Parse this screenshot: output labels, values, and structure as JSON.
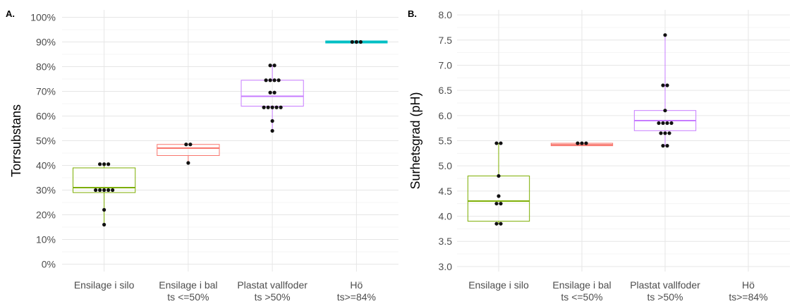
{
  "chart_data": [
    {
      "type": "box",
      "panel_label": "A.",
      "ylabel": "Torrsubstans",
      "y_tick_format": "percent",
      "ylim": [
        -3,
        103
      ],
      "y_ticks": [
        0,
        10,
        20,
        30,
        40,
        50,
        60,
        70,
        80,
        90,
        100
      ],
      "y_tick_labels": [
        "0%",
        "10%",
        "20%",
        "30%",
        "40%",
        "50%",
        "60%",
        "70%",
        "80%",
        "90%",
        "100%"
      ],
      "categories": [
        {
          "line1": "Ensilage i silo",
          "line2": ""
        },
        {
          "line1": "Ensilage i bal",
          "line2": "ts <=50%"
        },
        {
          "line1": "Plastat vallfoder",
          "line2": "ts >50%"
        },
        {
          "line1": "Hö",
          "line2": "ts>=84%"
        }
      ],
      "colors": [
        "#7cae00",
        "#f8766d",
        "#c77cff",
        "#00bfc4"
      ],
      "boxes": [
        {
          "min": 16,
          "q1": 29,
          "median": 31,
          "q3": 39,
          "max": 40.5,
          "points": [
            16,
            22,
            30,
            30,
            30,
            30,
            30,
            40.5,
            40.5,
            40.5
          ]
        },
        {
          "min": 41,
          "q1": 44,
          "median": 47,
          "q3": 48.5,
          "max": 48.5,
          "points": [
            41,
            48.5,
            48.5
          ]
        },
        {
          "min": 54,
          "q1": 64,
          "median": 68,
          "q3": 74.5,
          "max": 80.5,
          "points": [
            54,
            58,
            63.5,
            63.5,
            63.5,
            63.5,
            63.5,
            69.5,
            69.5,
            74.5,
            74.5,
            74.5,
            74.5,
            80.5,
            80.5
          ]
        },
        {
          "min": 90,
          "q1": 90,
          "median": 90,
          "q3": 90,
          "max": 90,
          "points": [
            90,
            90,
            90
          ]
        }
      ]
    },
    {
      "type": "box",
      "panel_label": "B.",
      "ylabel": "Surhetsgrad (pH)",
      "y_tick_format": "decimal1",
      "ylim": [
        2.9,
        8.1
      ],
      "y_ticks": [
        3.0,
        3.5,
        4.0,
        4.5,
        5.0,
        5.5,
        6.0,
        6.5,
        7.0,
        7.5,
        8.0
      ],
      "y_tick_labels": [
        "3.0",
        "3.5",
        "4.0",
        "4.5",
        "5.0",
        "5.5",
        "6.0",
        "6.5",
        "7.0",
        "7.5",
        "8.0"
      ],
      "categories": [
        {
          "line1": "Ensilage i silo",
          "line2": ""
        },
        {
          "line1": "Ensilage i bal",
          "line2": "ts <=50%"
        },
        {
          "line1": "Plastat vallfoder",
          "line2": "ts >50%"
        },
        {
          "line1": "Hö",
          "line2": "ts>=84%"
        }
      ],
      "colors": [
        "#7cae00",
        "#f8766d",
        "#c77cff",
        "#00bfc4"
      ],
      "boxes": [
        {
          "min": 3.85,
          "q1": 3.9,
          "median": 4.3,
          "q3": 4.8,
          "max": 5.45,
          "points": [
            3.85,
            3.85,
            4.25,
            4.25,
            4.4,
            4.8,
            5.45,
            5.45
          ]
        },
        {
          "min": 5.4,
          "q1": 5.4,
          "median": 5.42,
          "q3": 5.45,
          "max": 5.45,
          "points": [
            5.45,
            5.45,
            5.45
          ]
        },
        {
          "min": 5.4,
          "q1": 5.7,
          "median": 5.9,
          "q3": 6.1,
          "max": 7.6,
          "points": [
            5.4,
            5.4,
            5.65,
            5.65,
            5.65,
            5.85,
            5.85,
            5.85,
            5.85,
            6.1,
            6.6,
            6.6,
            7.6
          ]
        },
        null
      ]
    }
  ]
}
